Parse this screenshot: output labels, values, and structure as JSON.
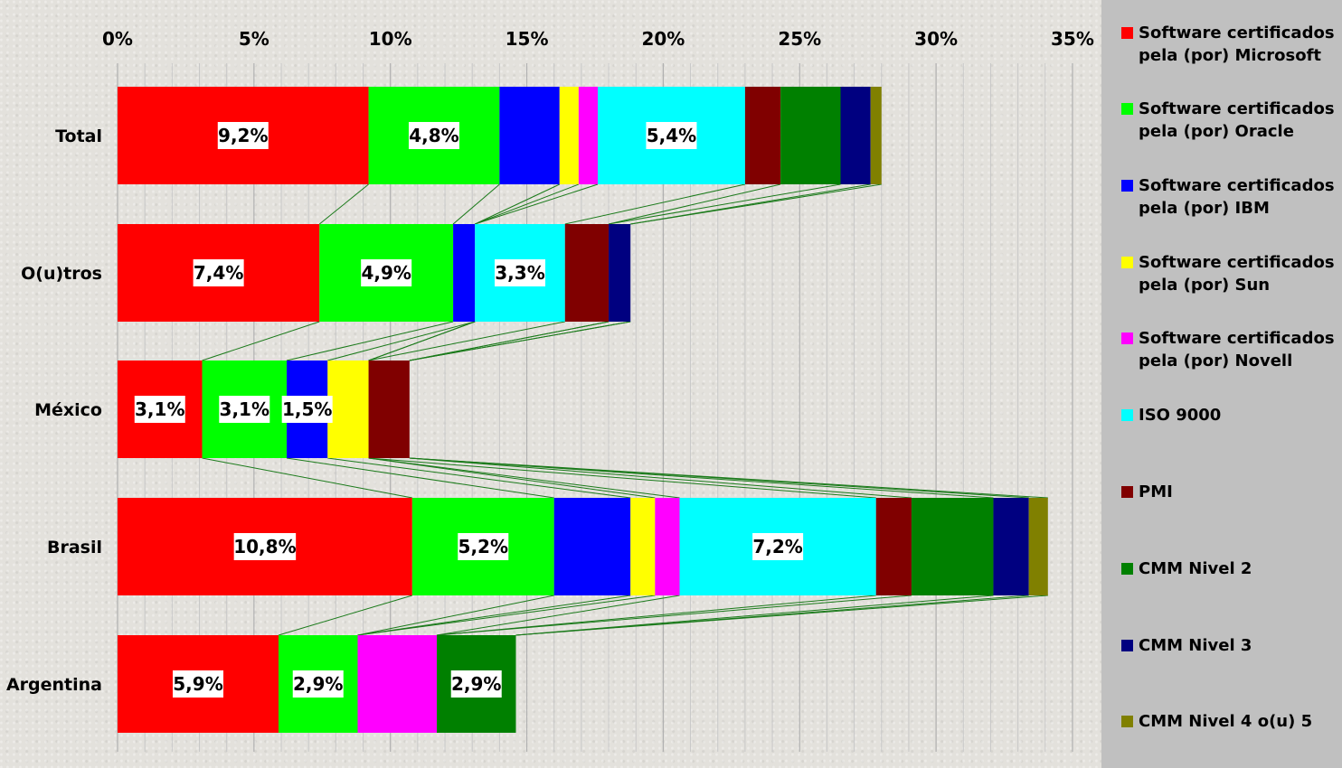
{
  "chart_data": {
    "type": "bar",
    "orientation": "horizontal",
    "stacked": true,
    "series_lines": true,
    "xlim": [
      0,
      35
    ],
    "x_ticks": [
      "0%",
      "5%",
      "10%",
      "15%",
      "20%",
      "25%",
      "30%",
      "35%"
    ],
    "x_tick_values": [
      0,
      5,
      10,
      15,
      20,
      25,
      30,
      35
    ],
    "grid": true,
    "legend_position": "right",
    "categories": [
      "Total",
      "O(u)tros",
      "México",
      "Brasil",
      "Argentina"
    ],
    "series": [
      {
        "name": "Software certificados pela (por) Microsoft",
        "color": "#ff0000",
        "values": [
          9.2,
          7.4,
          3.1,
          10.8,
          5.9
        ]
      },
      {
        "name": "Software certificados pela (por) Oracle",
        "color": "#00ff00",
        "values": [
          4.8,
          4.9,
          3.1,
          5.2,
          2.9
        ]
      },
      {
        "name": "Software certificados pela (por) IBM",
        "color": "#0000ff",
        "values": [
          2.2,
          0.8,
          1.5,
          2.8,
          0
        ]
      },
      {
        "name": "Software certificados pela (por) Sun",
        "color": "#ffff00",
        "values": [
          0.7,
          0,
          1.5,
          0.9,
          0
        ]
      },
      {
        "name": "Software certificados pela (por) Novell",
        "color": "#ff00ff",
        "values": [
          0.7,
          0,
          0,
          0.9,
          2.9
        ]
      },
      {
        "name": "ISO 9000",
        "color": "#00ffff",
        "values": [
          5.4,
          3.3,
          0,
          7.2,
          0
        ]
      },
      {
        "name": "PMI",
        "color": "#800000",
        "values": [
          1.3,
          1.6,
          1.5,
          1.3,
          0
        ]
      },
      {
        "name": "CMM Nivel 2",
        "color": "#008000",
        "values": [
          2.2,
          0,
          0,
          3.0,
          2.9
        ]
      },
      {
        "name": "CMM Nivel 3",
        "color": "#000080",
        "values": [
          1.1,
          0.8,
          0,
          1.3,
          0
        ]
      },
      {
        "name": "CMM Nivel 4 o(u) 5",
        "color": "#808000",
        "values": [
          0.4,
          0,
          0,
          0.7,
          0
        ]
      }
    ],
    "data_labels": [
      {
        "category": "Total",
        "series": "Software certificados pela (por) Microsoft",
        "text": "9,2%"
      },
      {
        "category": "Total",
        "series": "Software certificados pela (por) Oracle",
        "text": "4,8%"
      },
      {
        "category": "Total",
        "series": "ISO 9000",
        "text": "5,4%"
      },
      {
        "category": "O(u)tros",
        "series": "Software certificados pela (por) Microsoft",
        "text": "7,4%"
      },
      {
        "category": "O(u)tros",
        "series": "Software certificados pela (por) Oracle",
        "text": "4,9%"
      },
      {
        "category": "O(u)tros",
        "series": "ISO 9000",
        "text": "3,3%"
      },
      {
        "category": "México",
        "series": "Software certificados pela (por) Microsoft",
        "text": "3,1%"
      },
      {
        "category": "México",
        "series": "Software certificados pela (por) Oracle",
        "text": "3,1%"
      },
      {
        "category": "México",
        "series": "Software certificados pela (por) IBM",
        "text": "1,5%"
      },
      {
        "category": "Brasil",
        "series": "Software certificados pela (por) Microsoft",
        "text": "10,8%"
      },
      {
        "category": "Brasil",
        "series": "Software certificados pela (por) Oracle",
        "text": "5,2%"
      },
      {
        "category": "Brasil",
        "series": "ISO 9000",
        "text": "7,2%"
      },
      {
        "category": "Argentina",
        "series": "Software certificados pela (por) Microsoft",
        "text": "5,9%"
      },
      {
        "category": "Argentina",
        "series": "Software certificados pela (por) Oracle",
        "text": "2,9%"
      },
      {
        "category": "Argentina",
        "series": "CMM Nivel 2",
        "text": "2,9%"
      }
    ]
  }
}
